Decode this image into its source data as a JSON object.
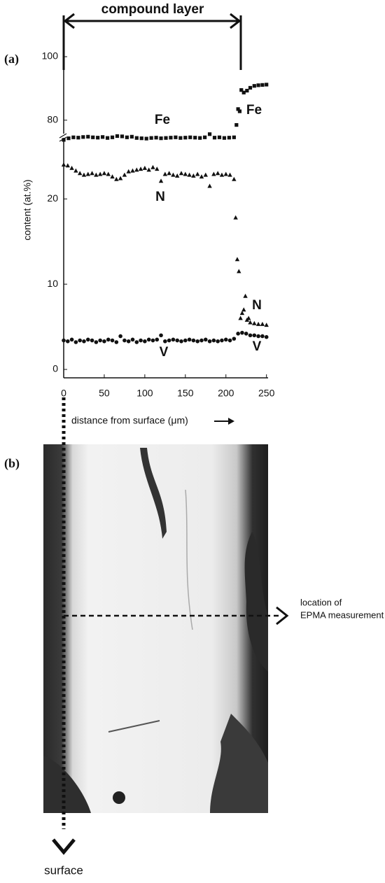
{
  "chart_data": {
    "type": "scatter",
    "ylabel": "content (at.%)",
    "xlabel": "distance from surface (μm)",
    "xlim": [
      0,
      252
    ],
    "xticks": [
      0,
      50,
      100,
      150,
      200,
      250
    ],
    "ylim": [
      0,
      100
    ],
    "ybreak": [
      27,
      74
    ],
    "yticks": [
      0,
      10,
      20,
      80,
      100
    ],
    "color": "#111",
    "series": [
      {
        "name": "Fe",
        "marker": "square",
        "x": [
          0,
          6,
          12,
          18,
          24,
          30,
          36,
          42,
          48,
          54,
          60,
          66,
          72,
          78,
          84,
          90,
          96,
          102,
          108,
          114,
          120,
          126,
          132,
          138,
          144,
          150,
          156,
          162,
          168,
          174,
          180,
          186,
          192,
          198,
          204,
          210,
          213,
          215,
          217,
          219,
          222,
          226,
          230,
          235,
          240,
          245,
          250
        ],
        "values": [
          73.8,
          74.3,
          74.6,
          74.5,
          74.7,
          74.8,
          74.6,
          74.5,
          74.7,
          74.4,
          74.6,
          75.0,
          74.9,
          74.6,
          74.8,
          74.4,
          74.3,
          74.2,
          74.4,
          74.5,
          74.3,
          74.4,
          74.5,
          74.6,
          74.4,
          74.5,
          74.6,
          74.5,
          74.4,
          74.6,
          75.6,
          74.5,
          74.6,
          74.4,
          74.5,
          74.6,
          78.5,
          83.5,
          82.8,
          89.5,
          88.7,
          89.3,
          90.2,
          90.8,
          91.0,
          91.1,
          91.2
        ]
      },
      {
        "name": "N",
        "marker": "triangle",
        "x": [
          0,
          5,
          10,
          15,
          20,
          25,
          30,
          35,
          40,
          45,
          50,
          55,
          60,
          65,
          70,
          75,
          80,
          85,
          90,
          95,
          100,
          105,
          110,
          115,
          120,
          125,
          130,
          135,
          140,
          145,
          150,
          155,
          160,
          165,
          170,
          175,
          180,
          185,
          190,
          195,
          200,
          205,
          210,
          212,
          214,
          216,
          218,
          220,
          222,
          224,
          226,
          228,
          230,
          235,
          240,
          245,
          250
        ],
        "values": [
          24.0,
          23.9,
          23.6,
          23.3,
          23.0,
          22.8,
          22.9,
          23.0,
          22.8,
          22.9,
          23.0,
          22.9,
          22.6,
          22.3,
          22.4,
          22.8,
          23.2,
          23.3,
          23.4,
          23.5,
          23.6,
          23.4,
          23.7,
          23.5,
          22.1,
          22.9,
          23.0,
          22.8,
          22.7,
          23.0,
          22.9,
          22.8,
          22.7,
          22.9,
          22.6,
          22.8,
          21.5,
          22.9,
          23.0,
          22.8,
          22.9,
          22.8,
          22.3,
          17.8,
          12.9,
          11.5,
          6.0,
          6.6,
          7.0,
          8.6,
          5.8,
          6.0,
          5.5,
          5.4,
          5.3,
          5.3,
          5.2
        ]
      },
      {
        "name": "V",
        "marker": "circle",
        "x": [
          0,
          5,
          10,
          15,
          20,
          25,
          30,
          35,
          40,
          45,
          50,
          55,
          60,
          65,
          70,
          75,
          80,
          85,
          90,
          95,
          100,
          105,
          110,
          115,
          120,
          125,
          130,
          135,
          140,
          145,
          150,
          155,
          160,
          165,
          170,
          175,
          180,
          185,
          190,
          195,
          200,
          205,
          210,
          215,
          220,
          225,
          230,
          235,
          240,
          245,
          250
        ],
        "values": [
          3.4,
          3.3,
          3.5,
          3.2,
          3.4,
          3.3,
          3.5,
          3.4,
          3.2,
          3.4,
          3.3,
          3.5,
          3.4,
          3.2,
          3.9,
          3.4,
          3.3,
          3.5,
          3.2,
          3.4,
          3.3,
          3.5,
          3.4,
          3.5,
          4.0,
          3.3,
          3.4,
          3.5,
          3.4,
          3.3,
          3.4,
          3.5,
          3.4,
          3.3,
          3.4,
          3.5,
          3.3,
          3.4,
          3.3,
          3.4,
          3.5,
          3.4,
          3.6,
          4.2,
          4.3,
          4.2,
          4.0,
          4.0,
          3.9,
          3.9,
          3.8
        ]
      }
    ]
  },
  "figure": {
    "compound_layer": "compound layer",
    "panel_a": "(a)",
    "panel_b": "(b)",
    "location": [
      "location of",
      "EPMA measurement"
    ],
    "surface": "surface"
  }
}
